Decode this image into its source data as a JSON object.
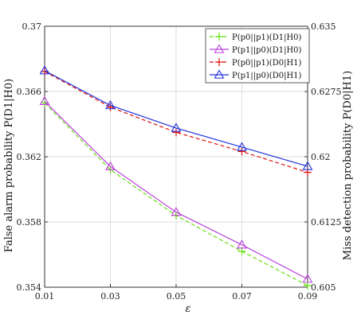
{
  "chart_data": {
    "type": "line",
    "x": [
      0.01,
      0.03,
      0.05,
      0.07,
      0.09
    ],
    "xticks": [
      "0.01",
      "0.03",
      "0.05",
      "0.07",
      "0.09"
    ],
    "xlabel": "ε",
    "xlim": [
      0.01,
      0.09
    ],
    "left_axis": {
      "label": "False alarm probability P(D1|H0)",
      "ylim": [
        0.354,
        0.37
      ],
      "ticks": [
        "0.354",
        "0.358",
        "0.362",
        "0.366",
        "0.37"
      ]
    },
    "right_axis": {
      "label": "Miss detection probability P(D0|H1)",
      "ylim": [
        0.605,
        0.635
      ],
      "ticks": [
        "0.605",
        "0.6125",
        "0.62",
        "0.6275",
        "0.635"
      ]
    },
    "series": [
      {
        "name": "P(p0||p1)(D1|H0)",
        "axis": "left",
        "color": "#66dd11",
        "marker": "plus",
        "dash": "5,3",
        "values": [
          0.3653,
          0.3612,
          0.3584,
          0.3562,
          0.3541
        ]
      },
      {
        "name": "P(p1||p0)(D1|H0)",
        "axis": "left",
        "color": "#bb44dd",
        "marker": "triangle",
        "dash": "",
        "values": [
          0.3654,
          0.3614,
          0.3586,
          0.3566,
          0.3545
        ]
      },
      {
        "name": "P(p0||p1)(D0|H1)",
        "axis": "right",
        "color": "#dd1111",
        "marker": "plus",
        "dash": "5,3",
        "values": [
          0.6298,
          0.6257,
          0.6228,
          0.6206,
          0.6182
        ]
      },
      {
        "name": "P(p1||p0)(D0|H1)",
        "axis": "right",
        "color": "#2233dd",
        "marker": "triangle",
        "dash": "",
        "values": [
          0.6299,
          0.6259,
          0.6233,
          0.6211,
          0.6189
        ]
      }
    ],
    "grid": true,
    "legend": "top-right"
  }
}
